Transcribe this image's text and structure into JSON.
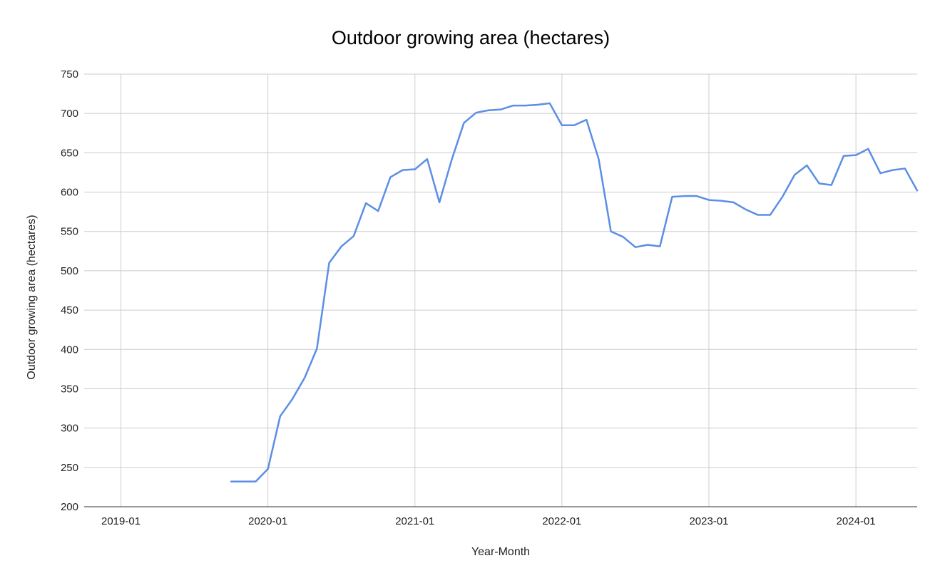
{
  "chart_data": {
    "type": "line",
    "title": "Outdoor growing area (hectares)",
    "xlabel": "Year-Month",
    "ylabel": "Outdoor growing area (hectares)",
    "ylim": [
      200,
      750
    ],
    "yticks": [
      "200",
      "250",
      "300",
      "350",
      "400",
      "450",
      "500",
      "550",
      "600",
      "650",
      "700",
      "750"
    ],
    "xlim": [
      "2018-10",
      "2024-06"
    ],
    "xticks": [
      {
        "date": "2019-01",
        "label": "2019-01"
      },
      {
        "date": "2020-01",
        "label": "2020-01"
      },
      {
        "date": "2021-01",
        "label": "2021-01"
      },
      {
        "date": "2022-01",
        "label": "2022-01"
      },
      {
        "date": "2023-01",
        "label": "2023-01"
      },
      {
        "date": "2024-01",
        "label": "2024-01"
      }
    ],
    "grid": true,
    "legend": "none",
    "series_color": "#5b8ee6",
    "series": [
      {
        "x": [
          "2019-10",
          "2019-11",
          "2019-12",
          "2020-01",
          "2020-02",
          "2020-03",
          "2020-04",
          "2020-05",
          "2020-06",
          "2020-07",
          "2020-08",
          "2020-09",
          "2020-10",
          "2020-11",
          "2020-12",
          "2021-01",
          "2021-02",
          "2021-03",
          "2021-04",
          "2021-05",
          "2021-06",
          "2021-07",
          "2021-08",
          "2021-09",
          "2021-10",
          "2021-11",
          "2021-12",
          "2022-01",
          "2022-02",
          "2022-03",
          "2022-04",
          "2022-05",
          "2022-06",
          "2022-07",
          "2022-08",
          "2022-09",
          "2022-10",
          "2022-11",
          "2022-12",
          "2023-01",
          "2023-02",
          "2023-03",
          "2023-04",
          "2023-05",
          "2023-06",
          "2023-07",
          "2023-08",
          "2023-09",
          "2023-10",
          "2023-11",
          "2023-12",
          "2024-01",
          "2024-02",
          "2024-03",
          "2024-04",
          "2024-05",
          "2024-06"
        ],
        "values": [
          232,
          232,
          232,
          248,
          315,
          337,
          364,
          401,
          510,
          531,
          544,
          586,
          576,
          619,
          628,
          629,
          642,
          587,
          641,
          688,
          701,
          704,
          705,
          710,
          710,
          711,
          713,
          685,
          685,
          692,
          642,
          550,
          543,
          530,
          533,
          531,
          594,
          595,
          595,
          590,
          589,
          587,
          578,
          571,
          571,
          594,
          622,
          634,
          611,
          609,
          646,
          647,
          655,
          624,
          628,
          630,
          602
        ]
      }
    ]
  }
}
